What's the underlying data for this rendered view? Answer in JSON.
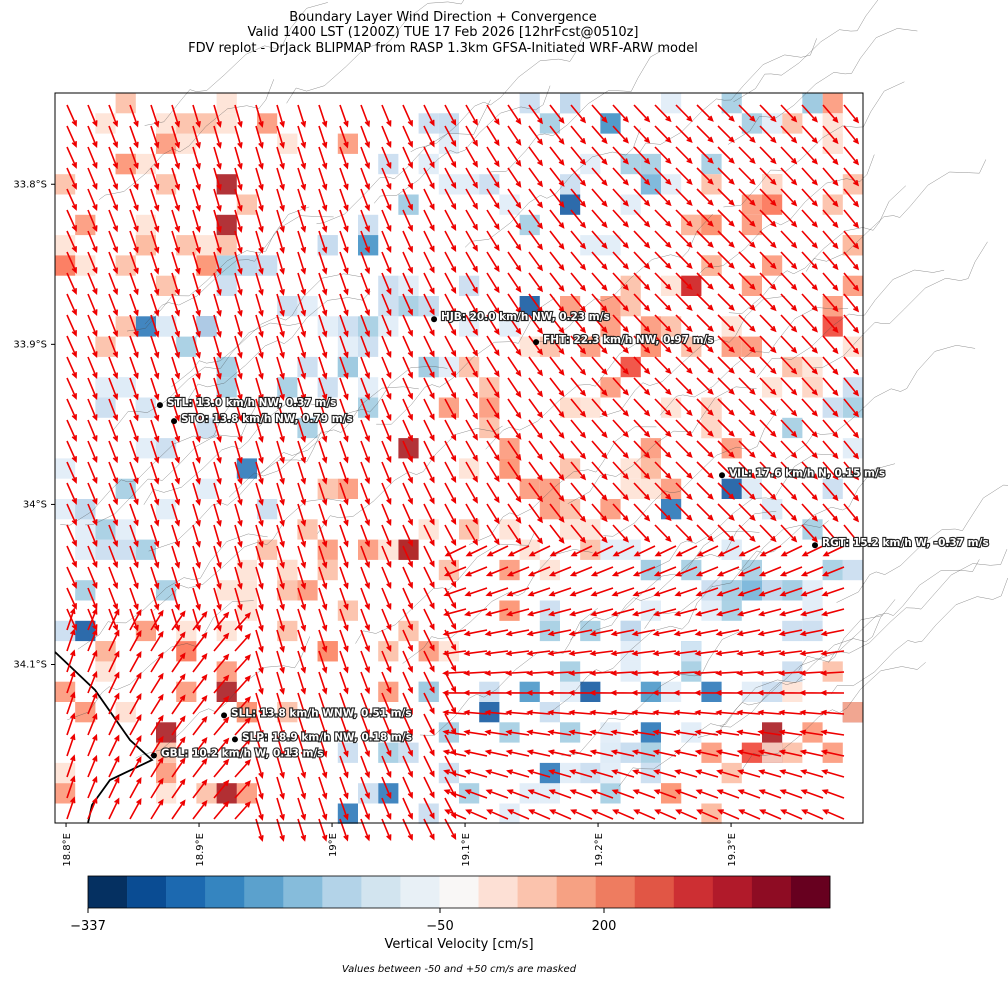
{
  "map": {
    "title": [
      "Boundary Layer Wind Direction + Convergence",
      "Valid 1400 LST (1200Z) TUE 17 Feb 2026 [12hrFcst@0510z]",
      "FDV replot - DrJack BLIPMAP from RASP 1.3km GFSA-Initiated WRF-ARW model"
    ],
    "xlim": [
      18.7917,
      19.3992
    ],
    "ylim": [
      -34.199,
      -33.743
    ],
    "xticks": [
      {
        "value": 18.8,
        "label": "18.8°E"
      },
      {
        "value": 18.9,
        "label": "18.9°E"
      },
      {
        "value": 19.0,
        "label": "19°E"
      },
      {
        "value": 19.1,
        "label": "19.1°E"
      },
      {
        "value": 19.2,
        "label": "19.2°E"
      },
      {
        "value": 19.3,
        "label": "19.3°E"
      }
    ],
    "yticks": [
      {
        "value": -33.8,
        "label": "33.8°S"
      },
      {
        "value": -33.9,
        "label": "33.9°S"
      },
      {
        "value": -34.0,
        "label": "34°S"
      },
      {
        "value": -34.1,
        "label": "34.1°S"
      }
    ],
    "stations": [
      {
        "label": "HJB: 20.0 km/h NW, 0.23 m/s",
        "lon": 19.0767,
        "lat": -33.8843
      },
      {
        "label": "FHT: 22.3 km/h NW, 0.97 m/s",
        "lon": 19.1534,
        "lat": -33.8986
      },
      {
        "label": "STL: 13.0 km/h NW, 0.37 m/s",
        "lon": 18.8706,
        "lat": -33.938
      },
      {
        "label": "STO: 13.8 km/h NW, 0.79 m/s",
        "lon": 18.8812,
        "lat": -33.948
      },
      {
        "label": "VIL: 17.6 km/h N, 0.15 m/s",
        "lon": 19.2932,
        "lat": -33.9818
      },
      {
        "label": "RGT: 15.2 km/h W, -0.37 m/s",
        "lon": 19.3631,
        "lat": -34.0255
      },
      {
        "label": "SLL: 13.8 km/h WNW, 0.51 m/s",
        "lon": 18.9188,
        "lat": -34.1318
      },
      {
        "label": "SLP: 18.9 km/h NW, 0.18 m/s",
        "lon": 18.927,
        "lat": -34.1468
      },
      {
        "label": "GBL: 10.2 km/h W, 0.13 m/s",
        "lon": 18.8661,
        "lat": -34.1568
      }
    ],
    "colorbar": {
      "label": "Vertical Velocity [cm/s]",
      "ticks": [
        {
          "value": -337,
          "label": "−337"
        },
        {
          "value": -50,
          "label": "−50"
        },
        200
      ]
    },
    "note": "Values between -50 and +50 cm/s are masked"
  }
}
